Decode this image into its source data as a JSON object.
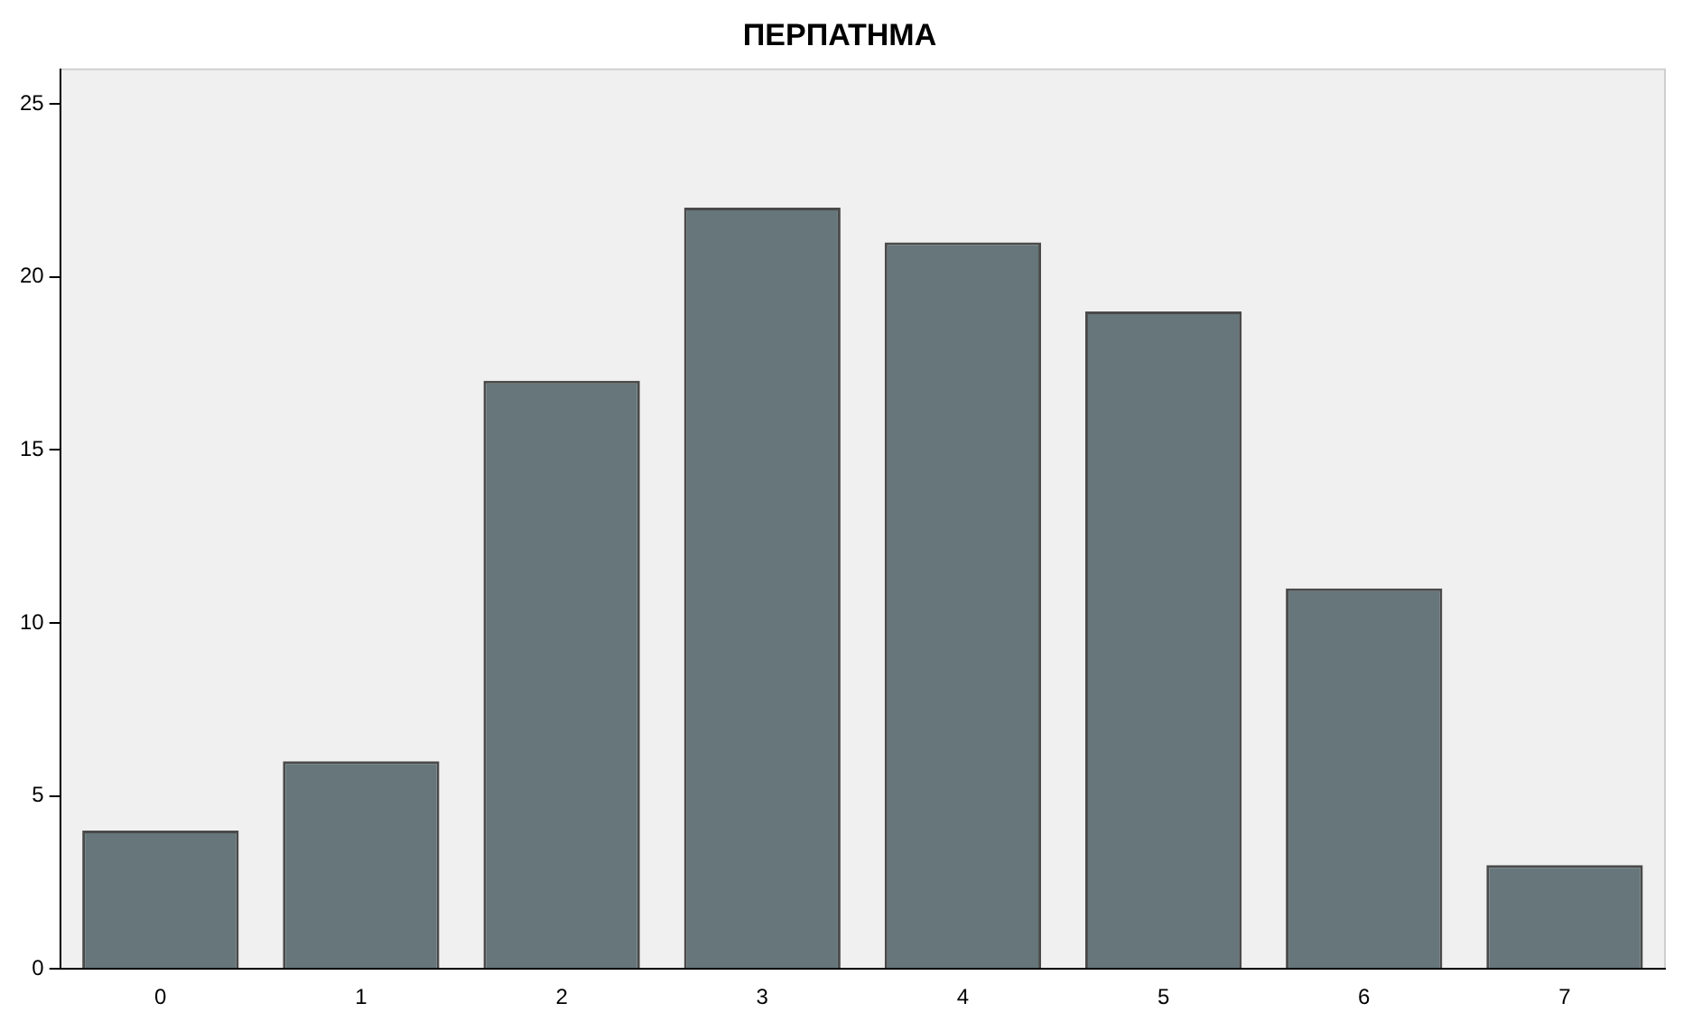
{
  "chart_data": {
    "type": "bar",
    "title": "ΠΕΡΠΑΤΗΜΑ",
    "categories": [
      "0",
      "1",
      "2",
      "3",
      "4",
      "5",
      "6",
      "7"
    ],
    "values": [
      4,
      6,
      17,
      22,
      21,
      19,
      11,
      3
    ],
    "color": "#66767a",
    "ylim": [
      0,
      26
    ],
    "yticks": [
      0,
      5,
      10,
      15,
      20,
      25
    ],
    "grid": false,
    "legend": false
  }
}
